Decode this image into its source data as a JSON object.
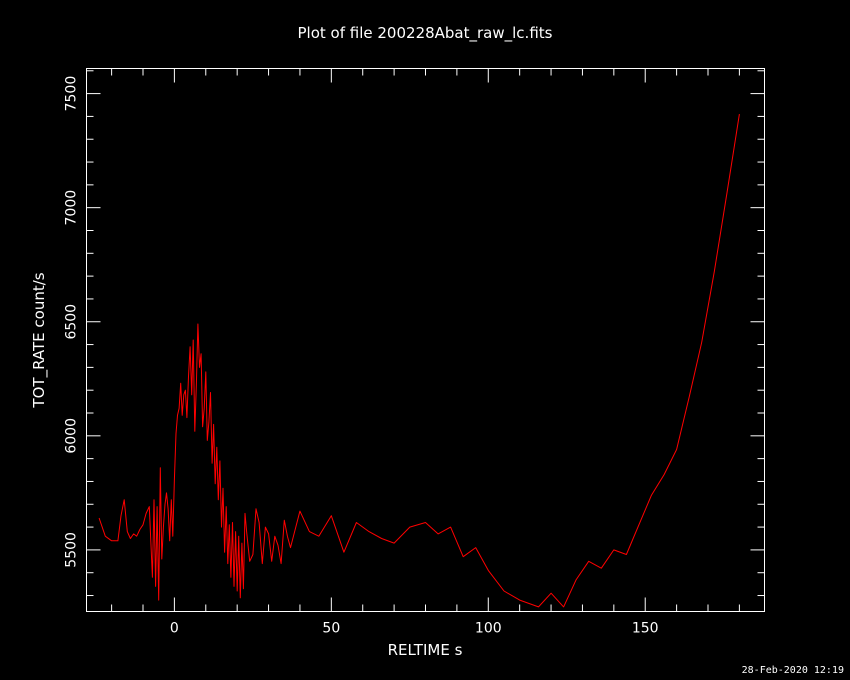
{
  "title": "Plot of file 200228Abat_raw_lc.fits",
  "timestamp": "28-Feb-2020 12:19",
  "colors": {
    "background": "#000000",
    "axes": "#ffffff",
    "series": "#ff0000"
  },
  "chart_data": {
    "type": "line",
    "title": "Plot of file 200228Abat_raw_lc.fits",
    "xlabel": "RELTIME  s",
    "ylabel": "TOT_RATE  count/s",
    "xlim": [
      -28,
      188
    ],
    "ylim": [
      5230,
      7610
    ],
    "xticks": [
      0,
      50,
      100,
      150
    ],
    "yticks": [
      5500,
      6000,
      6500,
      7000,
      7500
    ],
    "grid": false,
    "series": [
      {
        "color": "#ff0000",
        "x": [
          -24,
          -22,
          -20,
          -18,
          -17,
          -16,
          -15,
          -14,
          -13,
          -12,
          -11,
          -10,
          -9,
          -8,
          -7,
          -6.5,
          -6,
          -5.5,
          -5,
          -4.5,
          -4,
          -3.5,
          -3,
          -2.5,
          -2,
          -1.5,
          -1,
          -0.5,
          0,
          0.5,
          1,
          1.5,
          2,
          2.5,
          3,
          3.5,
          4,
          4.5,
          5,
          5.5,
          6,
          6.5,
          7,
          7.5,
          8,
          8.5,
          9,
          9.5,
          10,
          10.5,
          11,
          11.5,
          12,
          12.5,
          13,
          13.5,
          14,
          14.5,
          15,
          15.5,
          16,
          16.5,
          17,
          17.5,
          18,
          18.5,
          19,
          19.5,
          20,
          20.5,
          21,
          21.5,
          22,
          22.5,
          23,
          24,
          25,
          26,
          27,
          28,
          29,
          30,
          31,
          32,
          33,
          34,
          35,
          36,
          37,
          40,
          43,
          46,
          50,
          54,
          58,
          62,
          66,
          70,
          75,
          80,
          84,
          88,
          92,
          96,
          100,
          105,
          110,
          116,
          120,
          124,
          128,
          132,
          136,
          140,
          144,
          148,
          152,
          156,
          160,
          164,
          168,
          172,
          176,
          180
        ],
        "values": [
          5640,
          5560,
          5540,
          5540,
          5650,
          5720,
          5580,
          5550,
          5570,
          5560,
          5590,
          5610,
          5660,
          5690,
          5380,
          5720,
          5340,
          5690,
          5280,
          5860,
          5460,
          5600,
          5700,
          5750,
          5680,
          5540,
          5720,
          5560,
          5810,
          6010,
          6090,
          6120,
          6230,
          6090,
          6180,
          6200,
          6080,
          6260,
          6390,
          6180,
          6420,
          6020,
          6230,
          6490,
          6300,
          6360,
          6040,
          6120,
          6280,
          5980,
          6060,
          6190,
          5880,
          6050,
          5790,
          5950,
          5720,
          5890,
          5600,
          5770,
          5490,
          5690,
          5440,
          5610,
          5380,
          5620,
          5340,
          5580,
          5320,
          5560,
          5290,
          5530,
          5330,
          5660,
          5580,
          5450,
          5480,
          5680,
          5620,
          5440,
          5600,
          5570,
          5450,
          5560,
          5520,
          5440,
          5630,
          5560,
          5510,
          5670,
          5580,
          5560,
          5650,
          5490,
          5620,
          5580,
          5550,
          5530,
          5600,
          5620,
          5570,
          5600,
          5470,
          5510,
          5410,
          5320,
          5280,
          5250,
          5310,
          5250,
          5370,
          5450,
          5420,
          5500,
          5480,
          5610,
          5740,
          5830,
          5940,
          6170,
          6410,
          6720,
          7060,
          7410
        ]
      }
    ]
  }
}
